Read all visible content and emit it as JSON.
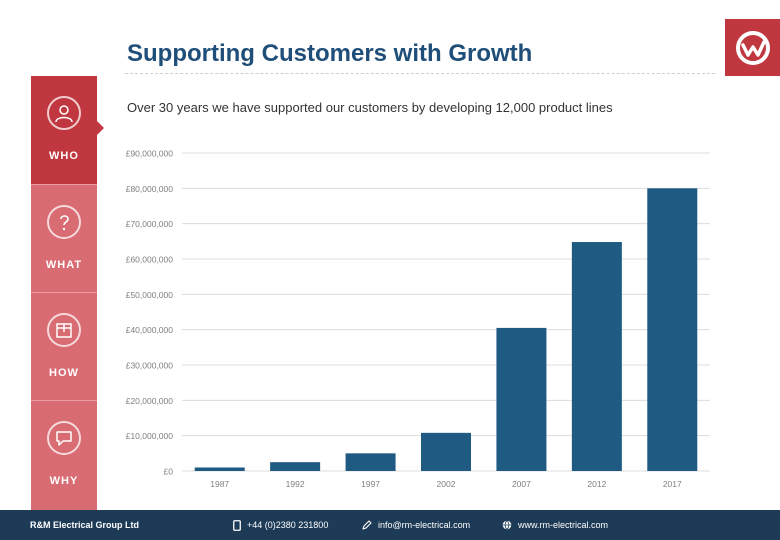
{
  "header": {
    "title": "Supporting Customers with Growth",
    "subtitle": "Over 30 years we have supported our customers by developing 12,000 product lines"
  },
  "logo": {
    "icon": "brand-logo-icon",
    "color": "#c0373f"
  },
  "sidebar": {
    "items": [
      {
        "label": "WHO",
        "icon": "user-icon",
        "active": true
      },
      {
        "label": "WHAT",
        "icon": "question-icon",
        "active": false
      },
      {
        "label": "HOW",
        "icon": "box-icon",
        "active": false
      },
      {
        "label": "WHY",
        "icon": "speech-bubble-icon",
        "active": false
      }
    ],
    "active_color": "#c0373f",
    "inactive_color": "#d96b72"
  },
  "chart_data": {
    "type": "bar",
    "title": "",
    "xlabel": "",
    "ylabel": "",
    "categories": [
      "1987",
      "1992",
      "1997",
      "2002",
      "2007",
      "2012",
      "2017"
    ],
    "values": [
      1000000,
      2500000,
      5000000,
      10800000,
      40500000,
      64800000,
      80000000
    ],
    "ylim": [
      0,
      90000000
    ],
    "yticks": [
      0,
      10000000,
      20000000,
      30000000,
      40000000,
      50000000,
      60000000,
      70000000,
      80000000,
      90000000
    ],
    "ytick_labels": [
      "£0",
      "£10,000,000",
      "£20,000,000",
      "£30,000,000",
      "£40,000,000",
      "£50,000,000",
      "£60,000,000",
      "£70,000,000",
      "£80,000,000",
      "£90,000,000"
    ],
    "grid": true,
    "bar_color": "#1f5a82"
  },
  "footer": {
    "company": "R&M Electrical Group Ltd",
    "phone": "+44 (0)2380 231800",
    "email": "info@rm-electrical.com",
    "website": "www.rm-electrical.com"
  }
}
